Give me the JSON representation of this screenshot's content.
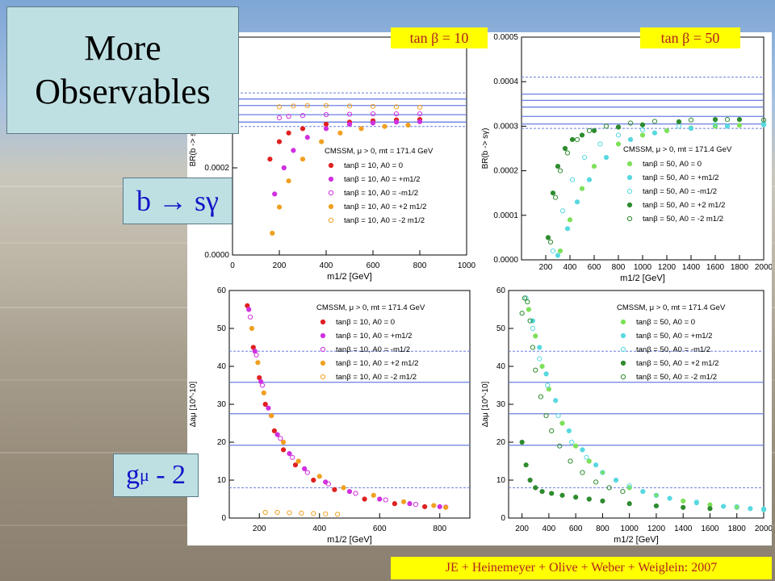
{
  "slide": {
    "title_line1": "More",
    "title_line2": "Observables",
    "bsg_label": "b → sγ",
    "gm2_label_main": "g",
    "gm2_label_sub": "μ",
    "gm2_label_tail": " - 2",
    "tanb10_header": "tan β = 10",
    "tanb50_header": "tan β = 50",
    "citation": "JE + Heinemeyer + Olive + Weber + Weiglein: 2007"
  },
  "colors": {
    "red": "#e02020",
    "magenta": "#d030e0",
    "orange": "#f0a020",
    "lgreen": "#7ee05a",
    "cyan": "#58d8e0",
    "dgreen": "#2e8b2e",
    "band_line": "#6a7fe0"
  },
  "chart_data": [
    {
      "type": "scatter",
      "ylabel": "BR(b -> sγ)",
      "xlabel": "m1/2 [GeV]",
      "xlim": [
        0,
        1000
      ],
      "ylim": [
        0,
        0.0005
      ],
      "xticks": [
        "0",
        "200",
        "400",
        "600",
        "800",
        "1000"
      ],
      "yticks": [
        "0.0000",
        "0.0002"
      ],
      "legend_title": "CMSSM, μ > 0, mt = 171.4 GeV",
      "legend": [
        "tanβ = 10, A0 = 0",
        "tanβ = 10, A0 = +m1/2",
        "tanβ = 10, A0 = -m1/2",
        "tanβ = 10, A0 = +2 m1/2",
        "tanβ = 10, A0 = -2 m1/2"
      ],
      "series": [
        {
          "name": "tanβ = 10, A0 = 0",
          "x": [
            160,
            200,
            240,
            300,
            400,
            500,
            600,
            700,
            800
          ],
          "y": [
            0.00022,
            0.00026,
            0.00028,
            0.00029,
            0.0003,
            0.000305,
            0.000308,
            0.00031,
            0.000311
          ]
        },
        {
          "name": "tanβ = 10, A0 = +m1/2",
          "x": [
            180,
            220,
            260,
            320,
            400,
            500,
            600,
            700,
            800
          ],
          "y": [
            0.00014,
            0.0002,
            0.00024,
            0.00027,
            0.00029,
            0.0003,
            0.000303,
            0.000305,
            0.000306
          ]
        },
        {
          "name": "tanβ = 10, A0 = -m1/2",
          "x": [
            200,
            240,
            300,
            400,
            500,
            600,
            700,
            800
          ],
          "y": [
            0.000315,
            0.000318,
            0.00032,
            0.000322,
            0.000323,
            0.000324,
            0.000324,
            0.000324
          ]
        },
        {
          "name": "tanβ = 10, A0 = +2 m1/2",
          "x": [
            170,
            200,
            240,
            300,
            380,
            460,
            550,
            650,
            750
          ],
          "y": [
            5e-05,
            0.00011,
            0.00017,
            0.00022,
            0.00026,
            0.00028,
            0.00029,
            0.000295,
            0.000298
          ]
        },
        {
          "name": "tanβ = 10, A0 = -2 m1/2",
          "x": [
            200,
            260,
            320,
            400,
            500,
            600,
            700,
            800
          ],
          "y": [
            0.00034,
            0.000342,
            0.000343,
            0.000343,
            0.000342,
            0.000341,
            0.00034,
            0.000339
          ]
        }
      ]
    },
    {
      "type": "scatter",
      "ylabel": "BR(b -> sγ)",
      "xlabel": "m1/2 [GeV]",
      "xlim": [
        0,
        2000
      ],
      "ylim": [
        0,
        0.0005
      ],
      "xticks": [
        "200",
        "400",
        "600",
        "800",
        "1000",
        "1200",
        "1400",
        "1600",
        "1800",
        "2000"
      ],
      "yticks": [
        "0.0000",
        "0.0001",
        "0.0002",
        "0.0003",
        "0.0004",
        "0.0005"
      ],
      "legend_title": "CMSSM, μ > 0, mt = 171.4 GeV",
      "legend": [
        "tanβ = 50, A0 = 0",
        "tanβ = 50, A0 = +m1/2",
        "tanβ = 50, A0 = -m1/2",
        "tanβ = 50, A0 = +2 m1/2",
        "tanβ = 50, A0 = -2 m1/2"
      ],
      "series": [
        {
          "name": "tanβ = 50, A0 = 0",
          "x": [
            320,
            400,
            500,
            600,
            800,
            1000,
            1200,
            1400,
            1600,
            1800,
            2000
          ],
          "y": [
            2e-05,
            9e-05,
            0.00016,
            0.00021,
            0.00026,
            0.00028,
            0.00029,
            0.000296,
            0.0003,
            0.000302,
            0.000304
          ]
        },
        {
          "name": "tanβ = 50, A0 = +m1/2",
          "x": [
            300,
            380,
            460,
            560,
            700,
            900,
            1100,
            1400,
            1700,
            2000
          ],
          "y": [
            1e-05,
            7e-05,
            0.00013,
            0.00018,
            0.00023,
            0.00027,
            0.000285,
            0.000295,
            0.0003,
            0.000303
          ]
        },
        {
          "name": "tanβ = 50, A0 = -m1/2",
          "x": [
            260,
            340,
            420,
            520,
            650,
            800,
            1000,
            1300,
            1600,
            2000
          ],
          "y": [
            2e-05,
            0.00011,
            0.00018,
            0.00023,
            0.00026,
            0.00028,
            0.000292,
            0.0003,
            0.000304,
            0.000306
          ]
        },
        {
          "name": "tanβ = 50, A0 = +2 m1/2",
          "x": [
            220,
            260,
            300,
            360,
            420,
            500,
            600,
            800,
            1000,
            1300,
            1600,
            1800
          ],
          "y": [
            5e-05,
            0.00015,
            0.00021,
            0.00025,
            0.00027,
            0.00028,
            0.00029,
            0.000298,
            0.000303,
            0.00031,
            0.000315,
            0.000315
          ]
        },
        {
          "name": "tanβ = 50, A0 = -2 m1/2",
          "x": [
            240,
            280,
            320,
            380,
            460,
            560,
            700,
            900,
            1100,
            1400,
            1700,
            2000
          ],
          "y": [
            4e-05,
            0.00014,
            0.0002,
            0.00024,
            0.00027,
            0.00029,
            0.0003,
            0.000307,
            0.000311,
            0.000314,
            0.000315,
            0.000314
          ]
        }
      ]
    },
    {
      "type": "scatter",
      "ylabel": "Δaμ [10^-10]",
      "xlabel": "m1/2 [GeV]",
      "xlim": [
        100,
        900
      ],
      "ylim": [
        0,
        60
      ],
      "xticks": [
        "200",
        "400",
        "600",
        "800"
      ],
      "yticks": [
        "0",
        "10",
        "20",
        "30",
        "40",
        "50",
        "60"
      ],
      "legend_title": "CMSSM, μ > 0, mt = 171.4 GeV",
      "legend": [
        "tanβ = 10, A0 = 0",
        "tanβ = 10, A0 = +m1/2",
        "tanβ = 10, A0 = -m1/2",
        "tanβ = 10, A0 = +2 m1/2",
        "tanβ = 10, A0 = -2 m1/2"
      ],
      "series": [
        {
          "name": "tanβ = 10, A0 = 0",
          "x": [
            160,
            180,
            200,
            220,
            250,
            280,
            320,
            380,
            450,
            550,
            650,
            750
          ],
          "y": [
            56,
            45,
            37,
            30,
            23,
            18,
            14,
            10,
            7.5,
            5,
            3.8,
            3
          ]
        },
        {
          "name": "tanβ = 10, A0 = +m1/2",
          "x": [
            165,
            185,
            205,
            230,
            260,
            300,
            350,
            420,
            500,
            600,
            700,
            800
          ],
          "y": [
            55,
            44,
            36,
            29,
            22,
            17,
            13,
            9.5,
            7,
            5,
            3.8,
            3
          ]
        },
        {
          "name": "tanβ = 10, A0 = -m1/2",
          "x": [
            170,
            190,
            210,
            240,
            270,
            310,
            360,
            430,
            520,
            620,
            720,
            820
          ],
          "y": [
            53,
            43,
            35,
            27,
            21,
            16,
            12,
            9,
            6.5,
            4.8,
            3.6,
            2.9
          ]
        },
        {
          "name": "tanβ = 10, A0 = +2 m1/2",
          "x": [
            175,
            195,
            215,
            240,
            280,
            330,
            400,
            480,
            580,
            680,
            780,
            820
          ],
          "y": [
            50,
            41,
            33,
            27,
            20,
            15,
            11,
            8,
            6,
            4.3,
            3.3,
            2.8
          ]
        },
        {
          "name": "tanβ = 10, A0 = -2 m1/2",
          "x": [
            220,
            260,
            300,
            340,
            380,
            420,
            460
          ],
          "y": [
            1.5,
            1.5,
            1.4,
            1.3,
            1.2,
            1.1,
            1.0
          ]
        }
      ]
    },
    {
      "type": "scatter",
      "ylabel": "Δaμ [10^-10]",
      "xlabel": "m1/2 [GeV]",
      "xlim": [
        100,
        2000
      ],
      "ylim": [
        0,
        60
      ],
      "xticks": [
        "200",
        "400",
        "600",
        "800",
        "1000",
        "1200",
        "1400",
        "1600",
        "1800",
        "2000"
      ],
      "yticks": [
        "0",
        "10",
        "20",
        "30",
        "40",
        "50",
        "60"
      ],
      "legend_title": "CMSSM, μ > 0, mt = 171.4 GeV",
      "legend": [
        "tanβ = 50, A0 = 0",
        "tanβ = 50, A0 = +m1/2",
        "tanβ = 50, A0 = -m1/2",
        "tanβ = 50, A0 = +2 m1/2",
        "tanβ = 50, A0 = -2 m1/2"
      ],
      "series": [
        {
          "name": "tanβ = 50, A0 = 0",
          "x": [
            250,
            300,
            350,
            400,
            500,
            600,
            700,
            800,
            1000,
            1200,
            1400,
            1600,
            1800,
            2000
          ],
          "y": [
            55,
            48,
            40,
            34,
            25,
            19,
            15,
            12,
            8,
            6,
            4.5,
            3.5,
            2.8,
            2.2
          ]
        },
        {
          "name": "tanβ = 50, A0 = +m1/2",
          "x": [
            280,
            330,
            380,
            450,
            550,
            650,
            750,
            900,
            1100,
            1300,
            1500,
            1700,
            1900,
            2000
          ],
          "y": [
            52,
            45,
            38,
            31,
            23,
            18,
            14,
            10,
            7,
            5.2,
            4,
            3.1,
            2.5,
            2.2
          ]
        },
        {
          "name": "tanβ = 50, A0 = -m1/2",
          "x": [
            230,
            280,
            330,
            390,
            470,
            570,
            680,
            800,
            1000,
            1200,
            1500,
            1800,
            2000
          ],
          "y": [
            58,
            50,
            42,
            35,
            27,
            20,
            16,
            12,
            8.5,
            6,
            4.2,
            3,
            2.4
          ]
        },
        {
          "name": "tanβ = 50, A0 = +2 m1/2",
          "x": [
            200,
            230,
            260,
            300,
            350,
            420,
            500,
            600,
            700,
            800,
            1000,
            1200,
            1400,
            1600
          ],
          "y": [
            20,
            14,
            10,
            8,
            7,
            6.5,
            6,
            5.5,
            5,
            4.5,
            3.8,
            3.2,
            2.8,
            2.5
          ]
        },
        {
          "name": "tanBeta = 50, A0 = -2 m1/2",
          "x": [
            200,
            220,
            240,
            260,
            280,
            300,
            340,
            380,
            420,
            480,
            560,
            650,
            750,
            850,
            950
          ],
          "y": [
            54,
            58,
            57,
            52,
            45,
            39,
            32,
            27,
            23,
            19,
            15,
            12,
            9.5,
            8,
            7
          ]
        }
      ]
    }
  ]
}
